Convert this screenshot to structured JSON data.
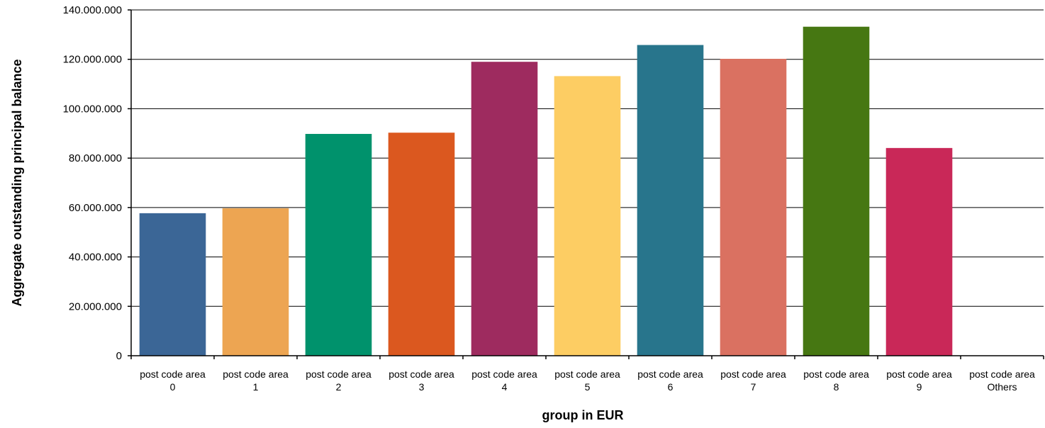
{
  "chart_data": {
    "type": "bar",
    "title": "",
    "xlabel": "group in EUR",
    "ylabel": "Aggregate outstanding principal balance",
    "ylim": [
      0,
      140000000
    ],
    "yticks": [
      0,
      20000000,
      40000000,
      60000000,
      80000000,
      100000000,
      120000000,
      140000000
    ],
    "ytick_labels": [
      "0",
      "20.000.000",
      "40.000.000",
      "60.000.000",
      "80.000.000",
      "100.000.000",
      "120.000.000",
      "140.000.000"
    ],
    "grid": true,
    "legend": "none",
    "categories": [
      [
        "post code area",
        "0"
      ],
      [
        "post code area",
        "1"
      ],
      [
        "post code area",
        "2"
      ],
      [
        "post code area",
        "3"
      ],
      [
        "post code area",
        "4"
      ],
      [
        "post code area",
        "5"
      ],
      [
        "post code area",
        "6"
      ],
      [
        "post code area",
        "7"
      ],
      [
        "post code area",
        "8"
      ],
      [
        "post code area",
        "9"
      ],
      [
        "post code area",
        "Others"
      ]
    ],
    "values": [
      57700000,
      59700000,
      89800000,
      90300000,
      119000000,
      113200000,
      125800000,
      120200000,
      133200000,
      84100000,
      0
    ],
    "colors": [
      "#3b6696",
      "#eda552",
      "#00926c",
      "#db581f",
      "#9e2b5f",
      "#fdcd63",
      "#28758c",
      "#da7161",
      "#467712",
      "#c92858",
      "#999999"
    ]
  }
}
